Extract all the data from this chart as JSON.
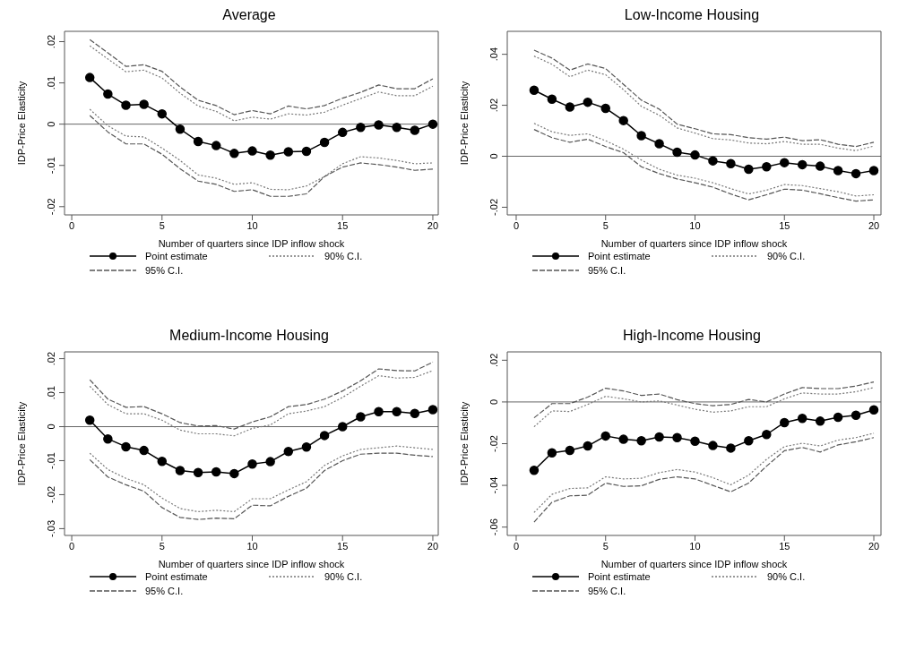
{
  "chart_data": [
    {
      "type": "line",
      "title": "Average",
      "xlabel": "Number of quarters since IDP inflow shock",
      "ylabel": "IDP-Price Elasticity",
      "x": [
        1,
        2,
        3,
        4,
        5,
        6,
        7,
        8,
        9,
        10,
        11,
        12,
        13,
        14,
        15,
        16,
        17,
        18,
        19,
        20
      ],
      "xlim": [
        -0.4,
        20.3
      ],
      "xticks": [
        0,
        5,
        10,
        15,
        20
      ],
      "ylim": [
        -0.022,
        0.0225
      ],
      "yticks": [
        {
          "value": -0.02,
          "label": "-.02"
        },
        {
          "value": -0.01,
          "label": "-.01"
        },
        {
          "value": 0,
          "label": "0"
        },
        {
          "value": 0.01,
          "label": ".01"
        },
        {
          "value": 0.02,
          "label": ".02"
        }
      ],
      "legend": "bottom",
      "ref_lines": [
        {
          "axis": "y",
          "value": 0
        }
      ],
      "series": [
        {
          "name": "Point estimate",
          "color": "#000000",
          "marker": "circle",
          "line_style": "solid",
          "values": [
            0.0113,
            0.0073,
            0.0046,
            0.0048,
            0.0025,
            -0.0012,
            -0.0042,
            -0.0052,
            -0.0071,
            -0.0065,
            -0.0075,
            -0.0067,
            -0.0066,
            -0.0044,
            -0.002,
            -0.0008,
            -0.0002,
            -0.0008,
            -0.0015,
            0
          ]
        },
        {
          "name": "90% C.I.",
          "color": "#777777",
          "marker": "none",
          "line_style": "dotted",
          "values": [
            0.019,
            0.0158,
            0.0127,
            0.0131,
            0.0112,
            0.0075,
            0.0044,
            0.0031,
            0.0008,
            0.0017,
            0.0012,
            0.0025,
            0.0022,
            0.0029,
            0.0046,
            0.0062,
            0.0078,
            0.0069,
            0.0069,
            0.0092
          ]
        },
        {
          "color": "#777777",
          "marker": "none",
          "line_style": "dotted",
          "values": [
            0.0036,
            -0.0004,
            -0.0029,
            -0.0031,
            -0.0058,
            -0.0088,
            -0.0123,
            -0.0131,
            -0.0146,
            -0.0142,
            -0.0158,
            -0.0159,
            -0.015,
            -0.0127,
            -0.0096,
            -0.0079,
            -0.0082,
            -0.0088,
            -0.0096,
            -0.0094
          ]
        },
        {
          "name": "95% C.I.",
          "color": "#555555",
          "marker": "none",
          "line_style": "dashed",
          "values": [
            0.0205,
            0.0173,
            0.014,
            0.0144,
            0.0128,
            0.009,
            0.0058,
            0.0045,
            0.0023,
            0.0033,
            0.0025,
            0.0044,
            0.0037,
            0.0045,
            0.0063,
            0.0077,
            0.0095,
            0.0086,
            0.0086,
            0.011
          ]
        },
        {
          "color": "#555555",
          "marker": "none",
          "line_style": "dashed",
          "values": [
            0.0021,
            -0.0019,
            -0.0048,
            -0.0048,
            -0.0073,
            -0.0108,
            -0.0138,
            -0.0146,
            -0.0163,
            -0.0159,
            -0.0175,
            -0.0175,
            -0.0169,
            -0.0127,
            -0.0104,
            -0.0094,
            -0.0098,
            -0.0104,
            -0.0112,
            -0.0109
          ]
        }
      ]
    },
    {
      "type": "line",
      "title": "Low-Income Housing",
      "xlabel": "Number of quarters since IDP inflow shock",
      "ylabel": "IDP-Price Elasticity",
      "x": [
        1,
        2,
        3,
        4,
        5,
        6,
        7,
        8,
        9,
        10,
        11,
        12,
        13,
        14,
        15,
        16,
        17,
        18,
        19,
        20
      ],
      "xlim": [
        -0.5,
        20.4
      ],
      "xticks": [
        0,
        5,
        10,
        15,
        20
      ],
      "ylim": [
        -0.023,
        0.049
      ],
      "yticks": [
        {
          "value": -0.02,
          "label": "-.02"
        },
        {
          "value": 0,
          "label": "0"
        },
        {
          "value": 0.02,
          "label": ".02"
        },
        {
          "value": 0.04,
          "label": ".04"
        }
      ],
      "legend": "bottom",
      "ref_lines": [
        {
          "axis": "y",
          "value": 0
        }
      ],
      "series": [
        {
          "name": "Point estimate",
          "color": "#000000",
          "marker": "circle",
          "line_style": "solid",
          "values": [
            0.0259,
            0.0224,
            0.0193,
            0.0212,
            0.0188,
            0.014,
            0.0081,
            0.0049,
            0.0016,
            0.0005,
            -0.0018,
            -0.0029,
            -0.0051,
            -0.0041,
            -0.0025,
            -0.0033,
            -0.0039,
            -0.0056,
            -0.0068,
            -0.0056
          ]
        },
        {
          "name": "90% C.I.",
          "color": "#777777",
          "marker": "none",
          "line_style": "dotted",
          "values": [
            0.0393,
            0.0361,
            0.0312,
            0.0338,
            0.032,
            0.0261,
            0.0196,
            0.0161,
            0.0111,
            0.0091,
            0.0069,
            0.0064,
            0.0052,
            0.0049,
            0.0058,
            0.0047,
            0.0047,
            0.0032,
            0.0022,
            0.004
          ]
        },
        {
          "color": "#777777",
          "marker": "none",
          "line_style": "dotted",
          "values": [
            0.0129,
            0.0096,
            0.0082,
            0.0088,
            0.0061,
            0.0028,
            -0.0015,
            -0.0051,
            -0.0074,
            -0.0086,
            -0.0104,
            -0.0127,
            -0.0148,
            -0.0133,
            -0.0111,
            -0.0115,
            -0.0127,
            -0.0139,
            -0.0156,
            -0.0151
          ]
        },
        {
          "name": "95% C.I.",
          "color": "#555555",
          "marker": "none",
          "line_style": "dashed",
          "values": [
            0.0416,
            0.0385,
            0.0338,
            0.0362,
            0.0344,
            0.0282,
            0.022,
            0.0185,
            0.0126,
            0.0108,
            0.0088,
            0.0085,
            0.0073,
            0.0067,
            0.0075,
            0.0061,
            0.0065,
            0.0047,
            0.0038,
            0.0055
          ]
        },
        {
          "color": "#555555",
          "marker": "none",
          "line_style": "dashed",
          "values": [
            0.0105,
            0.0073,
            0.0055,
            0.0067,
            0.0038,
            0.0014,
            -0.0041,
            -0.0068,
            -0.0089,
            -0.0104,
            -0.0121,
            -0.0148,
            -0.0171,
            -0.0151,
            -0.0129,
            -0.0133,
            -0.0147,
            -0.0162,
            -0.0176,
            -0.0171
          ]
        }
      ]
    },
    {
      "type": "line",
      "title": "Medium-Income Housing",
      "xlabel": "Number of quarters since IDP inflow shock",
      "ylabel": "IDP-Price Elasticity",
      "x": [
        1,
        2,
        3,
        4,
        5,
        6,
        7,
        8,
        9,
        10,
        11,
        12,
        13,
        14,
        15,
        16,
        17,
        18,
        19,
        20
      ],
      "xlim": [
        -0.4,
        20.3
      ],
      "xticks": [
        0,
        5,
        10,
        15,
        20
      ],
      "ylim": [
        -0.032,
        0.022
      ],
      "yticks": [
        {
          "value": -0.03,
          "label": "-.03"
        },
        {
          "value": -0.02,
          "label": "-.02"
        },
        {
          "value": -0.01,
          "label": "-.01"
        },
        {
          "value": 0,
          "label": "0"
        },
        {
          "value": 0.01,
          "label": ".01"
        },
        {
          "value": 0.02,
          "label": ".02"
        }
      ],
      "legend": "bottom",
      "ref_lines": [
        {
          "axis": "y",
          "value": 0
        }
      ],
      "series": [
        {
          "name": "Point estimate",
          "color": "#000000",
          "marker": "circle",
          "line_style": "solid",
          "values": [
            0.0019,
            -0.0036,
            -0.0059,
            -0.007,
            -0.0102,
            -0.0129,
            -0.0135,
            -0.0133,
            -0.0138,
            -0.011,
            -0.0103,
            -0.0073,
            -0.006,
            -0.0026,
            0,
            0.0029,
            0.0044,
            0.0044,
            0.0039,
            0.005
          ]
        },
        {
          "name": "90% C.I.",
          "color": "#777777",
          "marker": "none",
          "line_style": "dotted",
          "values": [
            0.0119,
            0.0065,
            0.0038,
            0.0038,
            0.0019,
            -0.001,
            -0.0021,
            -0.0021,
            -0.0027,
            -0.0005,
            0.0005,
            0.0038,
            0.0046,
            0.0059,
            0.0086,
            0.0119,
            0.015,
            0.0143,
            0.0145,
            0.0165
          ]
        },
        {
          "color": "#777777",
          "marker": "none",
          "line_style": "dotted",
          "values": [
            -0.0078,
            -0.0126,
            -0.0152,
            -0.0171,
            -0.021,
            -0.0241,
            -0.025,
            -0.0246,
            -0.025,
            -0.0212,
            -0.0212,
            -0.0186,
            -0.0162,
            -0.0114,
            -0.0086,
            -0.0067,
            -0.0062,
            -0.0057,
            -0.0062,
            -0.0067
          ]
        },
        {
          "name": "95% C.I.",
          "color": "#555555",
          "marker": "none",
          "line_style": "dashed",
          "values": [
            0.0138,
            0.0081,
            0.0057,
            0.0059,
            0.0038,
            0.0012,
            0.0002,
            0.0003,
            -0.0007,
            0.0014,
            0.0029,
            0.0059,
            0.0065,
            0.0081,
            0.0105,
            0.0135,
            0.017,
            0.0165,
            0.0164,
            0.019
          ]
        },
        {
          "color": "#555555",
          "marker": "none",
          "line_style": "dashed",
          "values": [
            -0.0097,
            -0.0148,
            -0.0171,
            -0.019,
            -0.0238,
            -0.0267,
            -0.0273,
            -0.0269,
            -0.0271,
            -0.0231,
            -0.0233,
            -0.0205,
            -0.0181,
            -0.0129,
            -0.01,
            -0.0081,
            -0.0078,
            -0.0078,
            -0.0084,
            -0.0088
          ]
        }
      ]
    },
    {
      "type": "line",
      "title": "High-Income Housing",
      "xlabel": "Number of quarters since IDP inflow shock",
      "ylabel": "IDP-Price Elasticity",
      "x": [
        1,
        2,
        3,
        4,
        5,
        6,
        7,
        8,
        9,
        10,
        11,
        12,
        13,
        14,
        15,
        16,
        17,
        18,
        19,
        20
      ],
      "xlim": [
        -0.5,
        20.4
      ],
      "xticks": [
        0,
        5,
        10,
        15,
        20
      ],
      "ylim": [
        -0.064,
        0.024
      ],
      "yticks": [
        {
          "value": -0.06,
          "label": "-.06"
        },
        {
          "value": -0.04,
          "label": "-.04"
        },
        {
          "value": -0.02,
          "label": "-.02"
        },
        {
          "value": 0,
          "label": "0"
        },
        {
          "value": 0.02,
          "label": ".02"
        }
      ],
      "legend": "bottom",
      "ref_lines": [
        {
          "axis": "y",
          "value": 0
        }
      ],
      "series": [
        {
          "name": "Point estimate",
          "color": "#000000",
          "marker": "circle",
          "line_style": "solid",
          "values": [
            -0.0328,
            -0.0244,
            -0.0232,
            -0.0211,
            -0.0163,
            -0.0179,
            -0.0186,
            -0.0168,
            -0.0171,
            -0.0188,
            -0.0209,
            -0.0221,
            -0.0186,
            -0.0156,
            -0.0099,
            -0.0079,
            -0.0092,
            -0.0073,
            -0.0064,
            -0.0038
          ]
        },
        {
          "name": "90% C.I.",
          "color": "#777777",
          "marker": "none",
          "line_style": "dotted",
          "values": [
            -0.0119,
            -0.0043,
            -0.0046,
            -0.0012,
            0.0027,
            0.0015,
            0,
            0.0005,
            -0.0015,
            -0.0035,
            -0.0049,
            -0.0043,
            -0.0023,
            -0.0023,
            0.0015,
            0.0043,
            0.0038,
            0.0038,
            0.0049,
            0.0069
          ]
        },
        {
          "color": "#777777",
          "marker": "none",
          "line_style": "dotted",
          "values": [
            -0.053,
            -0.0443,
            -0.0415,
            -0.0412,
            -0.0359,
            -0.0369,
            -0.0366,
            -0.0339,
            -0.0324,
            -0.0336,
            -0.0363,
            -0.0397,
            -0.0351,
            -0.0275,
            -0.0214,
            -0.0198,
            -0.0211,
            -0.0183,
            -0.0171,
            -0.015
          ]
        },
        {
          "name": "95% C.I.",
          "color": "#555555",
          "marker": "none",
          "line_style": "dashed",
          "values": [
            -0.0076,
            -0.0008,
            -0.0008,
            0.0023,
            0.0066,
            0.0053,
            0.0031,
            0.0038,
            0.0011,
            -0.0008,
            -0.0018,
            -0.0012,
            0.0012,
            0,
            0.0038,
            0.0069,
            0.0064,
            0.0064,
            0.0076,
            0.0096
          ]
        },
        {
          "color": "#555555",
          "marker": "none",
          "line_style": "dashed",
          "values": [
            -0.0576,
            -0.0481,
            -0.045,
            -0.0447,
            -0.0389,
            -0.0405,
            -0.0402,
            -0.0371,
            -0.0359,
            -0.0369,
            -0.04,
            -0.0431,
            -0.0389,
            -0.0308,
            -0.0234,
            -0.0218,
            -0.024,
            -0.0206,
            -0.0191,
            -0.0171
          ]
        }
      ]
    }
  ]
}
